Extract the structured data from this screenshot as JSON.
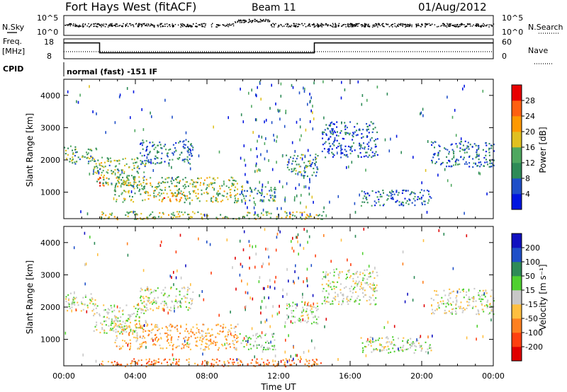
{
  "header": {
    "station": "Fort Hays West (fitACF)",
    "beam": "Beam 11",
    "date": "01/Aug/2012",
    "mode_text": "normal (fast) -151 IF"
  },
  "strip_labels": {
    "nsky": "N.Sky",
    "nsearch": "N.Search",
    "freq": "Freq.",
    "freq_unit": "[MHz]",
    "nave": "Nave",
    "cpid": "CPID",
    "nsky_ticks": [
      "10^5",
      "10^0"
    ],
    "nsearch_ticks": [
      "10^5",
      "10^0"
    ],
    "freq_ticks": [
      "18",
      "8"
    ],
    "nave_ticks": [
      "60",
      "0"
    ]
  },
  "colors": {
    "power": [
      "#0015e0",
      "#1f4fc8",
      "#2e8b57",
      "#4fa860",
      "#e0c020",
      "#ff9900",
      "#ff6010",
      "#e80000"
    ],
    "velocity": [
      "#e00000",
      "#ff4010",
      "#ff8020",
      "#ffbf40",
      "#c8c8c8",
      "#50d030",
      "#2e8b57",
      "#1f4fc8",
      "#1010c0"
    ]
  },
  "chart_data": [
    {
      "type": "line",
      "name": "frequency",
      "x_unit": "hours UT",
      "x": [
        0,
        2,
        2,
        14,
        14,
        24
      ],
      "y": [
        16,
        16,
        11,
        11,
        16,
        16
      ],
      "ylim": [
        8,
        18
      ]
    },
    {
      "type": "heatmap",
      "name": "power",
      "xlabel": "Time UT",
      "ylabel": "Slant Range [km]",
      "x_ticks": [
        "00:00",
        "04:00",
        "08:00",
        "12:00",
        "16:00",
        "20:00",
        "00:00"
      ],
      "y_ticks": [
        "1000",
        "2000",
        "3000",
        "4000"
      ],
      "colorbar_label": "Power [dB]",
      "colorbar_ticks": [
        "4",
        "8",
        "12",
        "16",
        "20",
        "24",
        "28"
      ],
      "clim": [
        0,
        30
      ],
      "xlim": [
        0,
        24
      ],
      "ylim": [
        180,
        4500
      ],
      "regions": [
        {
          "t0": 0.0,
          "t1": 1.8,
          "r0": 1900,
          "r1": 2450,
          "v": 12
        },
        {
          "t0": 1.6,
          "t1": 4.6,
          "r0": 1200,
          "r1": 2100,
          "v": 13
        },
        {
          "t0": 2.8,
          "t1": 9.7,
          "r0": 700,
          "r1": 1500,
          "v": 14
        },
        {
          "t0": 4.2,
          "t1": 7.2,
          "r0": 1900,
          "r1": 2650,
          "v": 8
        },
        {
          "t0": 1.8,
          "t1": 2.4,
          "r0": 1200,
          "r1": 1500,
          "v": 24
        },
        {
          "t0": 5.5,
          "t1": 6.5,
          "r0": 700,
          "r1": 1000,
          "v": 22
        },
        {
          "t0": 9.8,
          "t1": 11.8,
          "r0": 700,
          "r1": 1200,
          "v": 10
        },
        {
          "t0": 12.4,
          "t1": 14.2,
          "r0": 1500,
          "r1": 2200,
          "v": 11
        },
        {
          "t0": 14.4,
          "t1": 17.5,
          "r0": 2100,
          "r1": 3200,
          "v": 6
        },
        {
          "t0": 16.5,
          "t1": 20.5,
          "r0": 600,
          "r1": 1100,
          "v": 8
        },
        {
          "t0": 20.5,
          "t1": 24.0,
          "r0": 1800,
          "r1": 2600,
          "v": 7
        },
        {
          "t0": 2.0,
          "t1": 14.5,
          "r0": 180,
          "r1": 420,
          "v": 15
        }
      ]
    },
    {
      "type": "heatmap",
      "name": "velocity",
      "xlabel": "Time UT",
      "ylabel": "Slant Range [km]",
      "x_ticks": [
        "00:00",
        "04:00",
        "08:00",
        "12:00",
        "16:00",
        "20:00",
        "00:00"
      ],
      "y_ticks": [
        "1000",
        "2000",
        "3000",
        "4000"
      ],
      "colorbar_label": "Velocity [m s⁻¹]",
      "colorbar_ticks": [
        "200",
        "100",
        "50",
        "15",
        "-15",
        "-50",
        "-100",
        "-200"
      ],
      "clim": [
        -250,
        250
      ],
      "xlim": [
        0,
        24
      ],
      "ylim": [
        180,
        4500
      ],
      "regions": [
        {
          "t0": 0.0,
          "t1": 1.8,
          "r0": 1900,
          "r1": 2450,
          "v": 0
        },
        {
          "t0": 1.6,
          "t1": 4.6,
          "r0": 1200,
          "r1": 2100,
          "v": 0
        },
        {
          "t0": 2.8,
          "t1": 9.7,
          "r0": 700,
          "r1": 1500,
          "v": -70
        },
        {
          "t0": 4.2,
          "t1": 7.2,
          "r0": 1900,
          "r1": 2650,
          "v": 0
        },
        {
          "t0": 9.8,
          "t1": 11.8,
          "r0": 700,
          "r1": 1200,
          "v": 40
        },
        {
          "t0": 12.4,
          "t1": 14.2,
          "r0": 1500,
          "r1": 2200,
          "v": 10
        },
        {
          "t0": 14.4,
          "t1": 17.5,
          "r0": 2100,
          "r1": 3200,
          "v": 0
        },
        {
          "t0": 16.5,
          "t1": 20.5,
          "r0": 600,
          "r1": 1100,
          "v": 0
        },
        {
          "t0": 20.5,
          "t1": 24.0,
          "r0": 1800,
          "r1": 2600,
          "v": 0
        },
        {
          "t0": 2.0,
          "t1": 14.5,
          "r0": 180,
          "r1": 420,
          "v": -120
        }
      ]
    }
  ]
}
